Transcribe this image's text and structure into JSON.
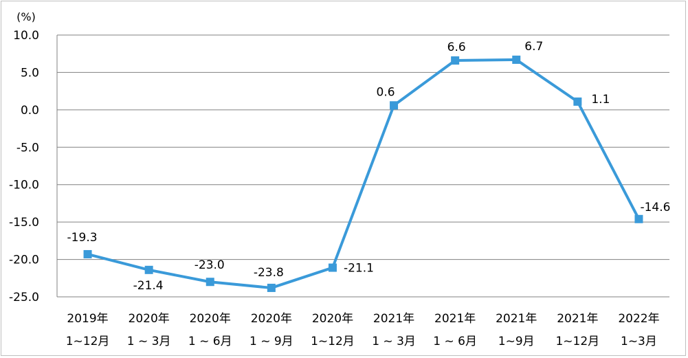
{
  "chart_data": {
    "type": "line",
    "unit_label": "(%)",
    "categories": [
      [
        "2019年",
        "1~12月"
      ],
      [
        "2020年",
        "1 ~ 3月"
      ],
      [
        "2020年",
        "1 ~ 6月"
      ],
      [
        "2020年",
        "1 ~ 9月"
      ],
      [
        "2020年",
        "1~12月"
      ],
      [
        "2021年",
        "1 ~ 3月"
      ],
      [
        "2021年",
        "1 ~ 6月"
      ],
      [
        "2021年",
        "1~9月"
      ],
      [
        "2021年",
        "1~12月"
      ],
      [
        "2022年",
        "1~3月"
      ]
    ],
    "series": [
      {
        "values": [
          -19.3,
          -21.4,
          -23.0,
          -23.8,
          -21.1,
          0.6,
          6.6,
          6.7,
          1.1,
          -14.6
        ],
        "color": "#3a9ad9"
      }
    ],
    "data_labels": [
      "-19.3",
      "-21.4",
      "-23.0",
      "-23.8",
      "-21.1",
      "0.6",
      "6.6",
      "6.7",
      "1.1",
      "-14.6"
    ],
    "yticks": [
      "10.0",
      "5.0",
      "0.0",
      "-5.0",
      "-10.0",
      "-15.0",
      "-20.0",
      "-25.0"
    ],
    "ytick_values": [
      10,
      5,
      0,
      -5,
      -10,
      -15,
      -20,
      -25
    ],
    "ylim": [
      -25,
      10
    ],
    "grid": true,
    "gridline_color": "#808080",
    "marker": "square"
  }
}
